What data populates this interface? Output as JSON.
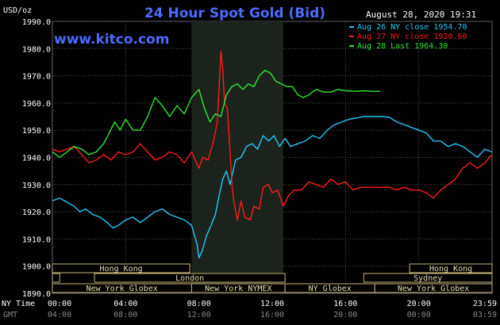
{
  "chart_data": {
    "type": "line",
    "title": "24 Hour Spot Gold (Bid)",
    "website": "www.kitco.com",
    "timestamp": "August 28, 2020 19:31",
    "y_unit_label": "USD/oz",
    "ylim": [
      1890,
      1990
    ],
    "y_ticks": [
      "1990.0",
      "1980.0",
      "1970.0",
      "1960.0",
      "1950.0",
      "1940.0",
      "1930.0",
      "1920.0",
      "1910.0",
      "1900.0",
      "1890.0"
    ],
    "x_row_labels": [
      "NY Time",
      "GMT"
    ],
    "ny_time_ticks": [
      "00:00",
      "04:00",
      "08:00",
      "12:00",
      "16:00",
      "20:00",
      "23:59"
    ],
    "gmt_ticks": [
      "04:00",
      "08:00",
      "12:00",
      "16:00",
      "20:00",
      "00:00",
      "03:59"
    ],
    "shaded_session_hours": [
      7.6,
      12.6
    ],
    "series": [
      {
        "name": "Aug 26 NY close 1954.70",
        "color": "#22c8f8",
        "points": [
          [
            0,
            1924
          ],
          [
            0.4,
            1925
          ],
          [
            0.8,
            1923.5
          ],
          [
            1.2,
            1922
          ],
          [
            1.5,
            1920
          ],
          [
            1.8,
            1921
          ],
          [
            2.2,
            1919
          ],
          [
            2.6,
            1918
          ],
          [
            3.0,
            1916
          ],
          [
            3.3,
            1914
          ],
          [
            3.6,
            1915
          ],
          [
            4.0,
            1917
          ],
          [
            4.4,
            1918
          ],
          [
            4.8,
            1916
          ],
          [
            5.2,
            1918
          ],
          [
            5.6,
            1920
          ],
          [
            6.0,
            1921
          ],
          [
            6.4,
            1919
          ],
          [
            6.8,
            1918
          ],
          [
            7.2,
            1917
          ],
          [
            7.6,
            1915
          ],
          [
            7.9,
            1908
          ],
          [
            8.0,
            1903
          ],
          [
            8.2,
            1906
          ],
          [
            8.4,
            1911
          ],
          [
            8.6,
            1914
          ],
          [
            8.9,
            1919
          ],
          [
            9.1,
            1926
          ],
          [
            9.3,
            1932
          ],
          [
            9.5,
            1935
          ],
          [
            9.7,
            1930
          ],
          [
            10.0,
            1939
          ],
          [
            10.3,
            1940
          ],
          [
            10.6,
            1944
          ],
          [
            10.9,
            1945
          ],
          [
            11.2,
            1943
          ],
          [
            11.5,
            1948
          ],
          [
            11.8,
            1946
          ],
          [
            12.1,
            1948
          ],
          [
            12.4,
            1944
          ],
          [
            12.7,
            1947
          ],
          [
            13.0,
            1944
          ],
          [
            13.4,
            1945
          ],
          [
            13.8,
            1946
          ],
          [
            14.2,
            1948
          ],
          [
            14.6,
            1947
          ],
          [
            15.0,
            1950
          ],
          [
            15.4,
            1952
          ],
          [
            15.8,
            1953
          ],
          [
            16.2,
            1954
          ],
          [
            16.6,
            1954.5
          ],
          [
            17.0,
            1955
          ],
          [
            17.5,
            1955
          ],
          [
            18.0,
            1955
          ],
          [
            18.4,
            1954.7
          ],
          [
            18.8,
            1953
          ],
          [
            19.2,
            1952
          ],
          [
            19.6,
            1951
          ],
          [
            20.0,
            1950
          ],
          [
            20.4,
            1949
          ],
          [
            20.8,
            1946
          ],
          [
            21.2,
            1946
          ],
          [
            21.6,
            1944
          ],
          [
            22.0,
            1945
          ],
          [
            22.4,
            1944
          ],
          [
            22.8,
            1942
          ],
          [
            23.2,
            1940
          ],
          [
            23.6,
            1943
          ],
          [
            23.98,
            1942
          ]
        ]
      },
      {
        "name": "Aug 27 NY close 1920.60",
        "color": "#ff1a1a",
        "points": [
          [
            0,
            1943
          ],
          [
            0.4,
            1942
          ],
          [
            0.8,
            1943
          ],
          [
            1.2,
            1944
          ],
          [
            1.6,
            1941
          ],
          [
            2.0,
            1938
          ],
          [
            2.4,
            1939
          ],
          [
            2.8,
            1941
          ],
          [
            3.2,
            1939
          ],
          [
            3.6,
            1942
          ],
          [
            4.0,
            1941
          ],
          [
            4.4,
            1942
          ],
          [
            4.8,
            1945
          ],
          [
            5.2,
            1942
          ],
          [
            5.6,
            1939
          ],
          [
            6.0,
            1940
          ],
          [
            6.4,
            1942
          ],
          [
            6.8,
            1941
          ],
          [
            7.2,
            1938
          ],
          [
            7.6,
            1942
          ],
          [
            8.0,
            1936
          ],
          [
            8.2,
            1940
          ],
          [
            8.5,
            1939
          ],
          [
            8.8,
            1946
          ],
          [
            9.0,
            1953
          ],
          [
            9.1,
            1966
          ],
          [
            9.2,
            1979
          ],
          [
            9.3,
            1972
          ],
          [
            9.4,
            1960
          ],
          [
            9.55,
            1958
          ],
          [
            9.7,
            1942
          ],
          [
            9.8,
            1930
          ],
          [
            9.9,
            1924
          ],
          [
            10.1,
            1917
          ],
          [
            10.3,
            1924
          ],
          [
            10.5,
            1918
          ],
          [
            10.8,
            1917
          ],
          [
            11.0,
            1922
          ],
          [
            11.3,
            1921
          ],
          [
            11.5,
            1929
          ],
          [
            11.8,
            1930
          ],
          [
            12.0,
            1927
          ],
          [
            12.3,
            1928
          ],
          [
            12.6,
            1922
          ],
          [
            12.9,
            1926
          ],
          [
            13.2,
            1928
          ],
          [
            13.6,
            1928
          ],
          [
            14.0,
            1931
          ],
          [
            14.4,
            1930
          ],
          [
            14.8,
            1929
          ],
          [
            15.2,
            1932
          ],
          [
            15.6,
            1930
          ],
          [
            16.0,
            1931
          ],
          [
            16.4,
            1928
          ],
          [
            16.8,
            1929
          ],
          [
            17.2,
            1929
          ],
          [
            17.6,
            1929
          ],
          [
            18.0,
            1929
          ],
          [
            18.4,
            1929
          ],
          [
            18.8,
            1928
          ],
          [
            19.2,
            1929
          ],
          [
            19.6,
            1928
          ],
          [
            20.0,
            1928
          ],
          [
            20.4,
            1927
          ],
          [
            20.8,
            1925
          ],
          [
            21.2,
            1928
          ],
          [
            21.6,
            1930
          ],
          [
            22.0,
            1932
          ],
          [
            22.4,
            1936
          ],
          [
            22.8,
            1938
          ],
          [
            23.2,
            1936
          ],
          [
            23.6,
            1938
          ],
          [
            23.98,
            1941
          ]
        ]
      },
      {
        "name": "Aug 28 Last 1964.30",
        "color": "#2ee82e",
        "points": [
          [
            0,
            1942
          ],
          [
            0.4,
            1940
          ],
          [
            0.8,
            1942
          ],
          [
            1.2,
            1944
          ],
          [
            1.6,
            1943
          ],
          [
            2.0,
            1941
          ],
          [
            2.4,
            1942
          ],
          [
            2.8,
            1945
          ],
          [
            3.1,
            1949
          ],
          [
            3.4,
            1953
          ],
          [
            3.7,
            1950
          ],
          [
            4.0,
            1954
          ],
          [
            4.4,
            1950
          ],
          [
            4.8,
            1950
          ],
          [
            5.2,
            1955
          ],
          [
            5.6,
            1962
          ],
          [
            6.0,
            1959
          ],
          [
            6.4,
            1955
          ],
          [
            6.8,
            1959
          ],
          [
            7.2,
            1956
          ],
          [
            7.6,
            1962
          ],
          [
            8.0,
            1965
          ],
          [
            8.3,
            1958
          ],
          [
            8.6,
            1953
          ],
          [
            8.9,
            1956
          ],
          [
            9.2,
            1955
          ],
          [
            9.5,
            1963
          ],
          [
            9.8,
            1966
          ],
          [
            10.1,
            1967
          ],
          [
            10.4,
            1965
          ],
          [
            10.7,
            1967
          ],
          [
            11.0,
            1966
          ],
          [
            11.3,
            1970
          ],
          [
            11.6,
            1972
          ],
          [
            11.9,
            1971
          ],
          [
            12.2,
            1968
          ],
          [
            12.5,
            1967
          ],
          [
            12.8,
            1966
          ],
          [
            13.1,
            1966
          ],
          [
            13.4,
            1963
          ],
          [
            13.7,
            1962
          ],
          [
            14.0,
            1963
          ],
          [
            14.4,
            1965
          ],
          [
            14.8,
            1964
          ],
          [
            15.2,
            1964
          ],
          [
            15.6,
            1965
          ],
          [
            16.0,
            1964.5
          ],
          [
            16.5,
            1964.3
          ],
          [
            17.0,
            1964.5
          ],
          [
            17.5,
            1964.3
          ],
          [
            17.9,
            1964.3
          ]
        ]
      }
    ],
    "markets": {
      "row1": [
        {
          "label": "Hong Kong",
          "start": 0,
          "end": 7.5
        },
        {
          "label": "Hong Kong",
          "start": 19.5,
          "end": 24
        }
      ],
      "row2": [
        {
          "label": "",
          "start": 0,
          "end": 0.4
        },
        {
          "label": "London",
          "start": 2.3,
          "end": 12.7
        },
        {
          "label": "Sydney",
          "start": 17,
          "end": 24
        }
      ],
      "row3": [
        {
          "label": "New York Globex",
          "start": 0,
          "end": 7.6
        },
        {
          "label": "New York NYMEX",
          "start": 7.6,
          "end": 12.7
        },
        {
          "label": "NY Globex",
          "start": 12.7,
          "end": 17.6
        },
        {
          "label": "New York Globex",
          "start": 17.6,
          "end": 24
        }
      ]
    }
  }
}
